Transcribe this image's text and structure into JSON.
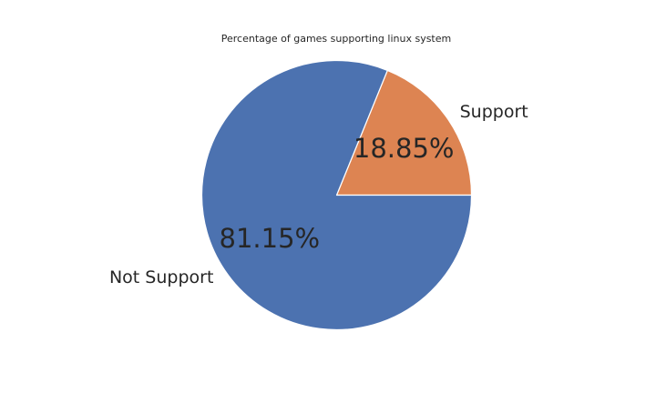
{
  "chart_data": {
    "type": "pie",
    "title": "Percentage of games supporting linux system",
    "slices": [
      {
        "label": "Support",
        "value": 18.85,
        "pct_label": "18.85%",
        "color": "#dd8452"
      },
      {
        "label": "Not Support",
        "value": 81.15,
        "pct_label": "81.15%",
        "color": "#4c72b0"
      }
    ],
    "start_angle_deg": 0,
    "direction": "counterclockwise",
    "slice_edge_color": "#ffffff"
  }
}
